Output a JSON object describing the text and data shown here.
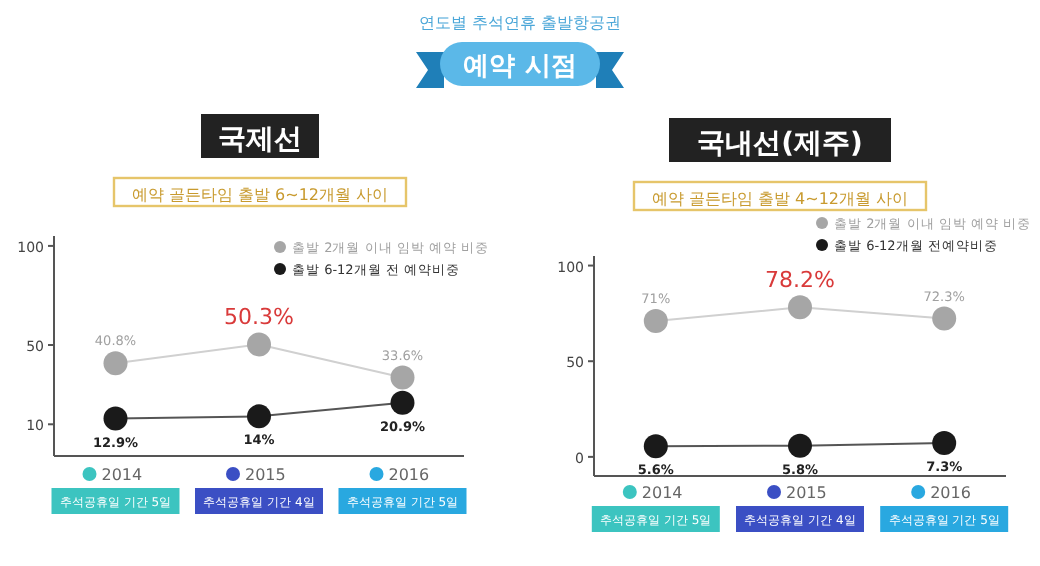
{
  "chart_data": [
    {
      "type": "line",
      "title": "국제선",
      "subtitle": "예약 골든타임 출발 6~12개월 사이",
      "categories": [
        "2014",
        "2015",
        "2016"
      ],
      "series": [
        {
          "name": "출발 2개월 이내 임박 예약 비중",
          "color": "#a6a6a6",
          "values": [
            40.8,
            50.3,
            33.6
          ],
          "value_labels": [
            "40.8%",
            "50.3%",
            "33.6%"
          ]
        },
        {
          "name": "출발 6-12개월 전 예약비중",
          "color": "#1a1a1a",
          "values": [
            12.9,
            14,
            20.9
          ],
          "value_labels": [
            "12.9%",
            "14%",
            "20.9%"
          ]
        }
      ],
      "ylim": [
        -6,
        105
      ],
      "yticks": [
        10,
        50,
        100
      ],
      "marker": "circle",
      "legend": "top right",
      "annotations": [
        "연도별 추석연휴 출발항공권",
        "예약 시점",
        "추석공휴일 기간 5일",
        "추석공휴일 기간 4일",
        "추석공휴일 기간 5일"
      ]
    },
    {
      "type": "line",
      "title": "국내선(제주)",
      "subtitle": "예약 골든타임 출발 4~12개월 사이",
      "categories": [
        "2014",
        "2015",
        "2016"
      ],
      "series": [
        {
          "name": "출발 2개월 이내 임박 예약 비중",
          "color": "#a6a6a6",
          "values": [
            71,
            78.2,
            72.3
          ],
          "value_labels": [
            "71%",
            "78.2%",
            "72.3%"
          ]
        },
        {
          "name": "출발 6-12개월 전예약비중",
          "color": "#1a1a1a",
          "values": [
            5.6,
            5.8,
            7.3
          ],
          "value_labels": [
            "5.6%",
            "5.8%",
            "7.3%"
          ]
        }
      ],
      "ylim": [
        -10,
        105
      ],
      "yticks": [
        0,
        50,
        100
      ],
      "marker": "circle",
      "legend": "top right",
      "annotations": [
        "추석공휴일 기간 5일",
        "추석공휴일 기간 4일",
        "추석공휴일 기간 5일"
      ]
    }
  ]
}
